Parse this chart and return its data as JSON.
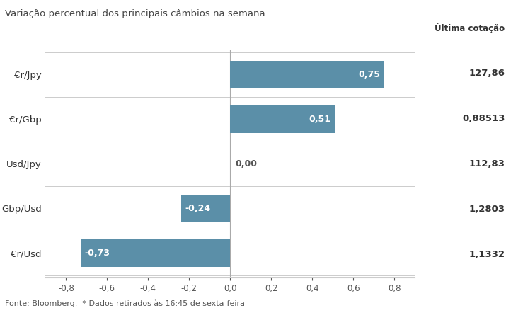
{
  "title": "Variação percentual dos principais câmbios na semana.",
  "categories": [
    "€r/Jpy",
    "€r/Gbp",
    "Usd/Jpy",
    "Gbp/Usd",
    "€r/Usd"
  ],
  "values": [
    0.75,
    0.51,
    0.0,
    -0.24,
    -0.73
  ],
  "last_quote_label": "Última cotação",
  "last_quotes": [
    "127,86",
    "0,88513",
    "112,83",
    "1,2803",
    "1,1332"
  ],
  "bar_color": "#5b8fa8",
  "value_color_positive": "#ffffff",
  "value_color_negative": "#ffffff",
  "value_color_zero": "#555555",
  "xlim": [
    -0.9,
    0.9
  ],
  "xtick_values": [
    -0.8,
    -0.6,
    -0.4,
    -0.2,
    0.0,
    0.2,
    0.4,
    0.6,
    0.8
  ],
  "footnote": "Fonte: Bloomberg.  * Dados retirados às 16:45 de sexta-feira",
  "bg_color": "#ffffff",
  "grid_color": "#cccccc",
  "bar_height": 0.62
}
